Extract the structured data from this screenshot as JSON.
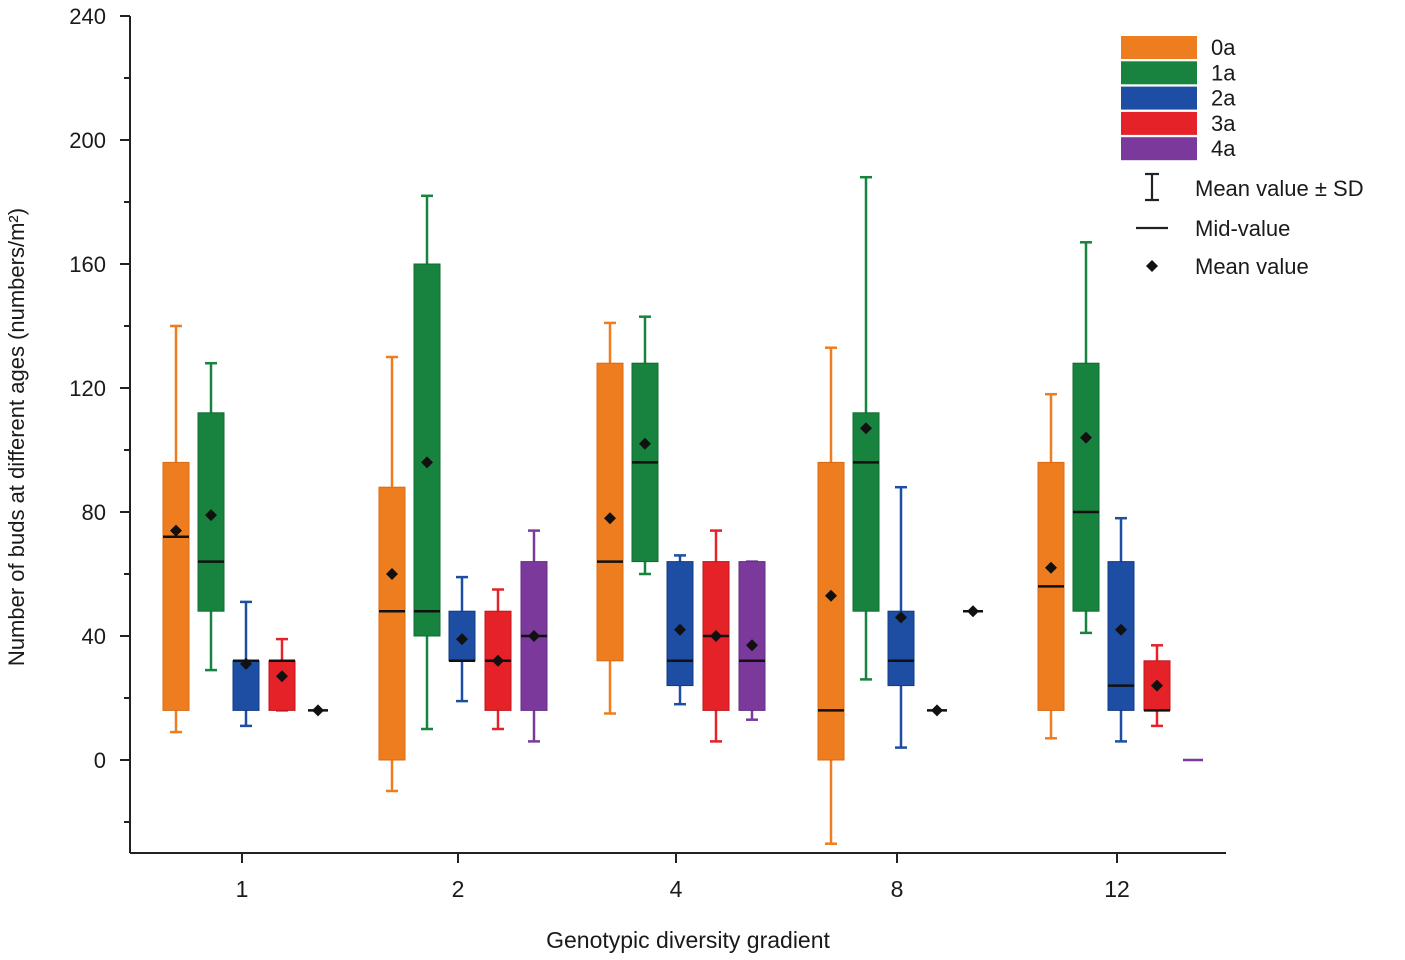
{
  "chart_data": {
    "type": "box",
    "title": "",
    "xlabel": "Genotypic diversity gradient",
    "ylabel": "Number of buds at different ages (numbers/m²)",
    "ylim": [
      -28,
      240
    ],
    "yticks": [
      0,
      40,
      80,
      120,
      160,
      200,
      240
    ],
    "ytick_labels": [
      "0",
      "40",
      "80",
      "120",
      "160",
      "200",
      "240"
    ],
    "categories": [
      "1",
      "2",
      "4",
      "8",
      "12"
    ],
    "series": [
      {
        "name": "0a",
        "color": "#ee7d1f",
        "edge": "#d96a12",
        "boxes": [
          {
            "whisker_low": 9,
            "q1": 16,
            "median": 72,
            "q3": 96,
            "whisker_high": 140,
            "mean": 74
          },
          {
            "whisker_low": -10,
            "q1": 0,
            "median": 48,
            "q3": 88,
            "whisker_high": 130,
            "mean": 60
          },
          {
            "whisker_low": 15,
            "q1": 32,
            "median": 64,
            "q3": 128,
            "whisker_high": 141,
            "mean": 78
          },
          {
            "whisker_low": -27,
            "q1": 0,
            "median": 16,
            "q3": 96,
            "whisker_high": 133,
            "mean": 53
          },
          {
            "whisker_low": 7,
            "q1": 16,
            "median": 56,
            "q3": 96,
            "whisker_high": 118,
            "mean": 62
          }
        ]
      },
      {
        "name": "1a",
        "color": "#17833e",
        "edge": "#0f6b30",
        "boxes": [
          {
            "whisker_low": 29,
            "q1": 48,
            "median": 64,
            "q3": 112,
            "whisker_high": 128,
            "mean": 79
          },
          {
            "whisker_low": 10,
            "q1": 40,
            "median": 48,
            "q3": 160,
            "whisker_high": 182,
            "mean": 96
          },
          {
            "whisker_low": 60,
            "q1": 64,
            "median": 96,
            "q3": 128,
            "whisker_high": 143,
            "mean": 102
          },
          {
            "whisker_low": 26,
            "q1": 48,
            "median": 96,
            "q3": 112,
            "whisker_high": 188,
            "mean": 107
          },
          {
            "whisker_low": 41,
            "q1": 48,
            "median": 80,
            "q3": 128,
            "whisker_high": 167,
            "mean": 104
          }
        ]
      },
      {
        "name": "2a",
        "color": "#1d4ea3",
        "edge": "#123b85",
        "boxes": [
          {
            "whisker_low": 11,
            "q1": 16,
            "median": 32,
            "q3": 32,
            "whisker_high": 51,
            "mean": 31
          },
          {
            "whisker_low": 19,
            "q1": 32,
            "median": 32,
            "q3": 48,
            "whisker_high": 59,
            "mean": 39
          },
          {
            "whisker_low": 18,
            "q1": 24,
            "median": 32,
            "q3": 64,
            "whisker_high": 66,
            "mean": 42
          },
          {
            "whisker_low": 4,
            "q1": 24,
            "median": 32,
            "q3": 48,
            "whisker_high": 88,
            "mean": 46
          },
          {
            "whisker_low": 6,
            "q1": 16,
            "median": 24,
            "q3": 64,
            "whisker_high": 78,
            "mean": 42
          }
        ]
      },
      {
        "name": "3a",
        "color": "#e42228",
        "edge": "#c0161c",
        "boxes": [
          {
            "whisker_low": 16,
            "q1": 16,
            "median": 32,
            "q3": 32,
            "whisker_high": 39,
            "mean": 27
          },
          {
            "whisker_low": 10,
            "q1": 16,
            "median": 32,
            "q3": 48,
            "whisker_high": 55,
            "mean": 32
          },
          {
            "whisker_low": 6,
            "q1": 16,
            "median": 40,
            "q3": 64,
            "whisker_high": 74,
            "mean": 40
          },
          {
            "whisker_low": 16,
            "q1": 16,
            "median": 16,
            "q3": 16,
            "whisker_high": 16,
            "mean": 16
          },
          {
            "whisker_low": 11,
            "q1": 16,
            "median": 16,
            "q3": 32,
            "whisker_high": 37,
            "mean": 24
          }
        ]
      },
      {
        "name": "4a",
        "color": "#7b3a9b",
        "edge": "#652c83",
        "boxes": [
          {
            "whisker_low": 16,
            "q1": 16,
            "median": 16,
            "q3": 16,
            "whisker_high": 16,
            "mean": 16
          },
          {
            "whisker_low": 6,
            "q1": 16,
            "median": 40,
            "q3": 64,
            "whisker_high": 74,
            "mean": 40
          },
          {
            "whisker_low": 13,
            "q1": 16,
            "median": 32,
            "q3": 64,
            "whisker_high": 64,
            "mean": 37
          },
          {
            "whisker_low": 48,
            "q1": 48,
            "median": 48,
            "q3": 48,
            "whisker_high": 48,
            "mean": 48
          },
          {
            "whisker_low": 0,
            "q1": 0,
            "median": 0,
            "q3": 0,
            "whisker_high": 0,
            "mean": 0
          }
        ]
      }
    ],
    "legend": {
      "placement": "top-right",
      "entries": [
        "0a",
        "1a",
        "2a",
        "3a",
        "4a"
      ],
      "symbol_entries": [
        {
          "symbol": "errorbar",
          "label": "Mean value ± SD"
        },
        {
          "symbol": "line",
          "label": "Mid-value"
        },
        {
          "symbol": "diamond",
          "label": "Mean value"
        }
      ]
    }
  }
}
